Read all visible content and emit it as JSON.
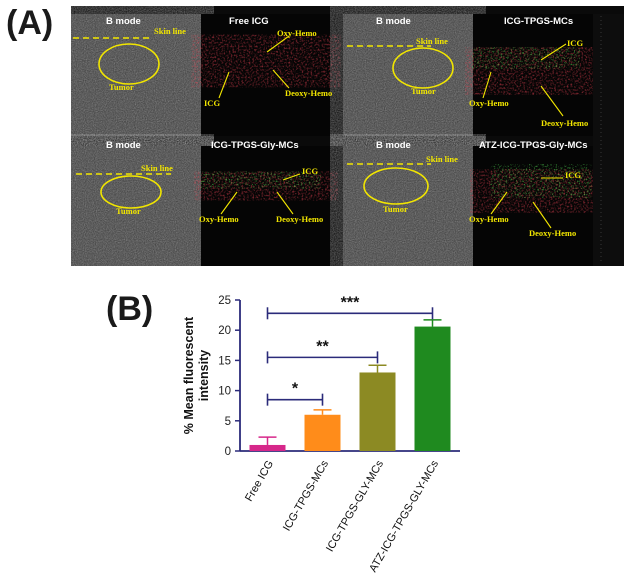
{
  "panels": {
    "a_label": "(A)",
    "b_label": "(B)"
  },
  "imaging": {
    "tiles": [
      {
        "title": "B mode",
        "labels": {
          "skin": "Skin line",
          "tumor": "Tumor"
        }
      },
      {
        "title": "Free ICG",
        "labels": {
          "oxy": "Oxy-Hemo",
          "deoxy": "Deoxy-Hemo",
          "icg": "ICG"
        }
      },
      {
        "title": "B mode",
        "labels": {
          "skin": "Skin line",
          "tumor": "Tumor"
        }
      },
      {
        "title": "ICG-TPGS-MCs",
        "labels": {
          "icg": "ICG",
          "oxy": "Oxy-Hemo",
          "deoxy": "Deoxy-Hemo"
        }
      },
      {
        "title": "B mode",
        "labels": {
          "skin": "Skin line",
          "tumor": "Tumor"
        }
      },
      {
        "title": "ICG-TPGS-Gly-MCs",
        "labels": {
          "icg": "ICG",
          "oxy": "Oxy-Hemo",
          "deoxy": "Deoxy-Hemo"
        }
      },
      {
        "title": "B mode",
        "labels": {
          "skin": "Skin line",
          "tumor": "Tumor"
        }
      },
      {
        "title": "ATZ-ICG-TPGS-Gly-MCs",
        "labels": {
          "icg": "ICG",
          "oxy": "Oxy-Hemo",
          "deoxy": "Deoxy-Hemo"
        }
      }
    ]
  },
  "chart_data": {
    "type": "bar",
    "ylabel": "% Mean fluorescent intensity",
    "ylim": [
      0,
      25
    ],
    "yticks": [
      0,
      5,
      10,
      15,
      20,
      25
    ],
    "categories": [
      "Free ICG",
      "ICG-TPGS-MCs",
      "ICG-TPGS-GLY-MCs",
      "ATZ-ICG-TPGS-GLY-MCs"
    ],
    "values": [
      1.0,
      6.0,
      13.0,
      20.6
    ],
    "errors": [
      1.3,
      0.8,
      1.2,
      1.1
    ],
    "colors": [
      "#d6278a",
      "#ff8c1a",
      "#8c8a23",
      "#1f8a1f"
    ],
    "significance": [
      {
        "from": 0,
        "to": 1,
        "label": "*",
        "y": 8.5
      },
      {
        "from": 0,
        "to": 2,
        "label": "**",
        "y": 15.5
      },
      {
        "from": 0,
        "to": 3,
        "label": "***",
        "y": 22.8
      }
    ],
    "grid": false
  }
}
